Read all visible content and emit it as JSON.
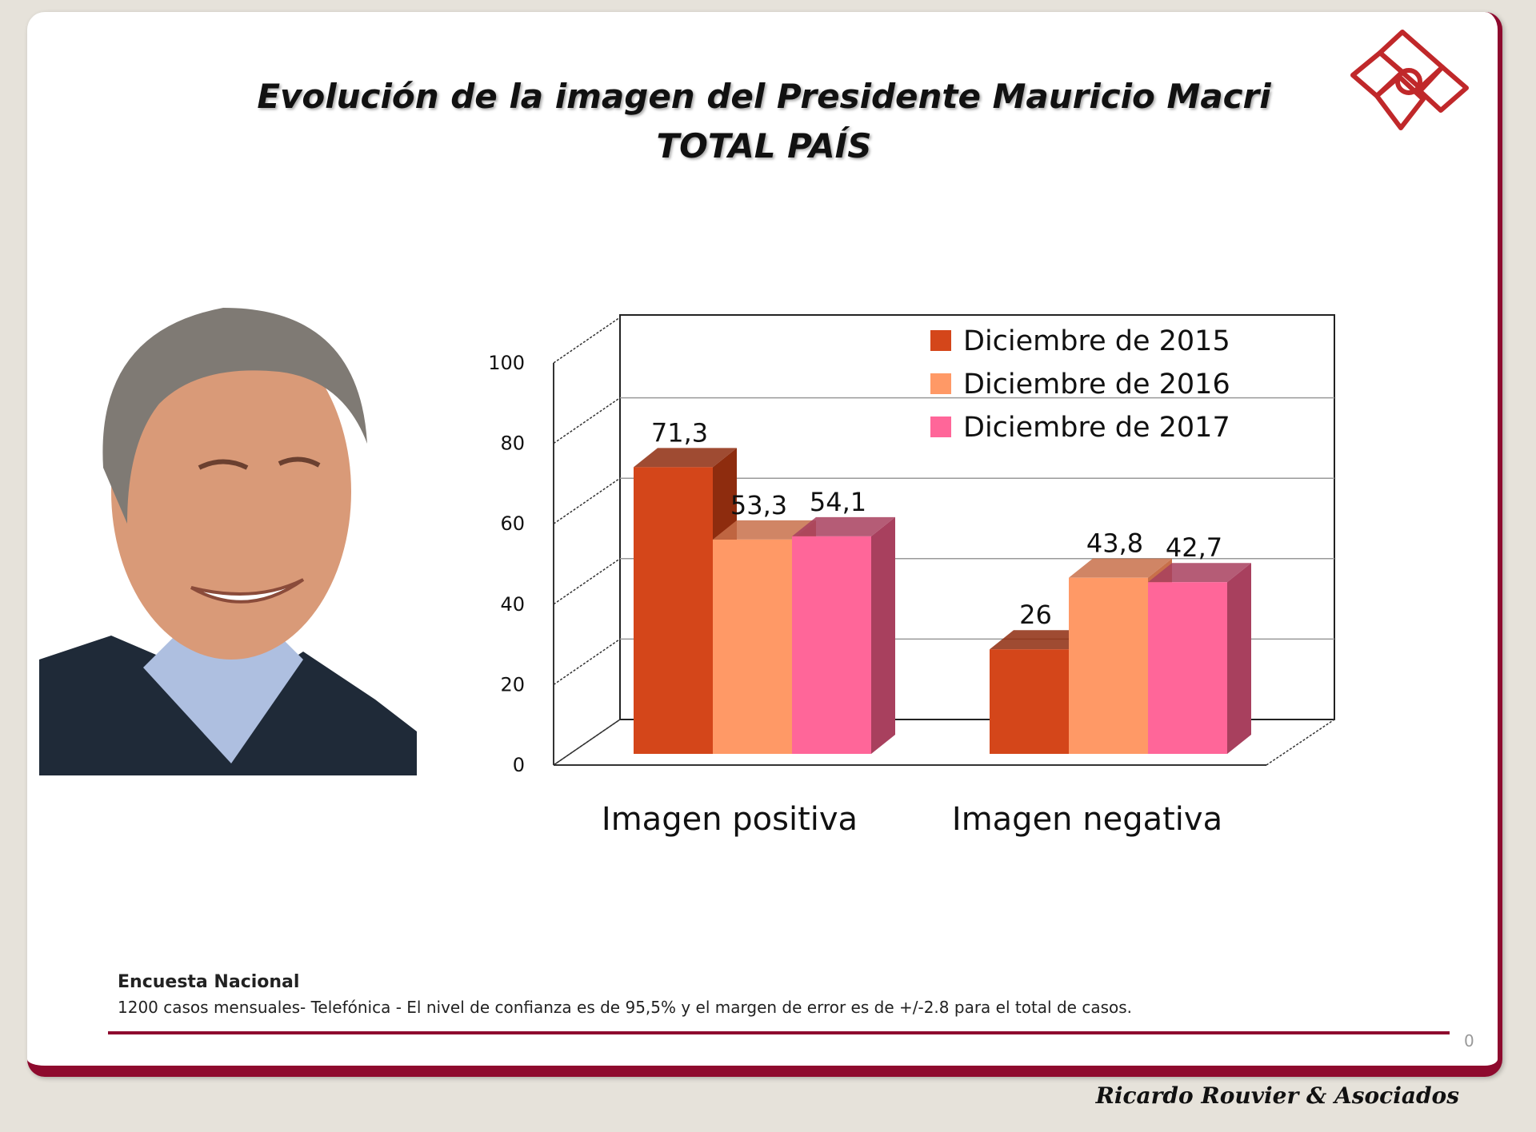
{
  "header": {
    "title_line1": "Evolución de la imagen del Presidente Mauricio Macri",
    "title_line2": "TOTAL PAÍS"
  },
  "footer": {
    "survey_title": "Encuesta Nacional",
    "survey_note": "1200 casos  mensuales- Telefónica - El nivel de confianza es de 95,5% y el margen de error es de +/-2.8 para el total de casos.",
    "page_number": "0",
    "brand": "Ricardo Rouvier & Asociados"
  },
  "colors": {
    "accent": "#8e0a2e",
    "logo": "#c0282a"
  },
  "chart_data": {
    "type": "bar",
    "title": "Evolución de la imagen del Presidente Mauricio Macri - TOTAL PAÍS",
    "categories": [
      "Imagen positiva",
      "Imagen negativa"
    ],
    "series": [
      {
        "name": "Diciembre de 2015",
        "values": [
          71.3,
          26
        ],
        "labels": [
          "71,3",
          "26"
        ],
        "color": "#d4461a",
        "side": "#8e2c0e"
      },
      {
        "name": "Diciembre de 2016",
        "values": [
          53.3,
          43.8
        ],
        "labels": [
          "53,3",
          "43,8"
        ],
        "color": "#ff9966",
        "side": "#c8704a"
      },
      {
        "name": "Diciembre de 2017",
        "values": [
          54.1,
          42.7
        ],
        "labels": [
          "54,1",
          "42,7"
        ],
        "color": "#ff6699",
        "side": "#a8405e"
      }
    ],
    "yticks": [
      "0",
      "20",
      "40",
      "60",
      "80",
      "100"
    ],
    "ylim": [
      0,
      100
    ],
    "grid": true,
    "legend": "top-right",
    "style": "3d"
  }
}
